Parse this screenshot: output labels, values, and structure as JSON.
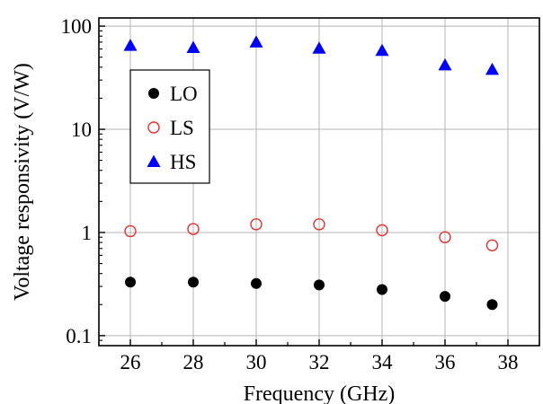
{
  "chart_data": {
    "type": "scatter",
    "xlabel": "Frequency (GHz)",
    "ylabel": "Voltage  responsivity  (V/W)",
    "xlim": [
      25,
      39
    ],
    "ylim": [
      0.08,
      120
    ],
    "yscale": "log",
    "xticks": [
      26,
      28,
      30,
      32,
      34,
      36,
      38
    ],
    "xtick_labels": [
      "26",
      "28",
      "30",
      "32",
      "34",
      "36",
      "38"
    ],
    "yticks": [
      0.1,
      1,
      10,
      100
    ],
    "ytick_labels": [
      "0.1",
      "1",
      "10",
      "100"
    ],
    "grid": true,
    "legend_position": "left-middle",
    "series": [
      {
        "name": "LO",
        "marker": "filled-circle",
        "color": "#000000",
        "x": [
          26,
          28,
          30,
          32,
          34,
          36,
          37.5
        ],
        "y": [
          0.33,
          0.33,
          0.32,
          0.31,
          0.28,
          0.24,
          0.2
        ]
      },
      {
        "name": "LS",
        "marker": "open-circle",
        "color": "#e8322e",
        "x": [
          26,
          28,
          30,
          32,
          34,
          36,
          37.5
        ],
        "y": [
          1.03,
          1.08,
          1.2,
          1.2,
          1.05,
          0.9,
          0.75
        ]
      },
      {
        "name": "HS",
        "marker": "filled-triangle",
        "color": "#0000ff",
        "x": [
          26,
          28,
          30,
          32,
          34,
          36,
          37.5
        ],
        "y": [
          65,
          62,
          70,
          61,
          58,
          42,
          38
        ]
      }
    ]
  }
}
